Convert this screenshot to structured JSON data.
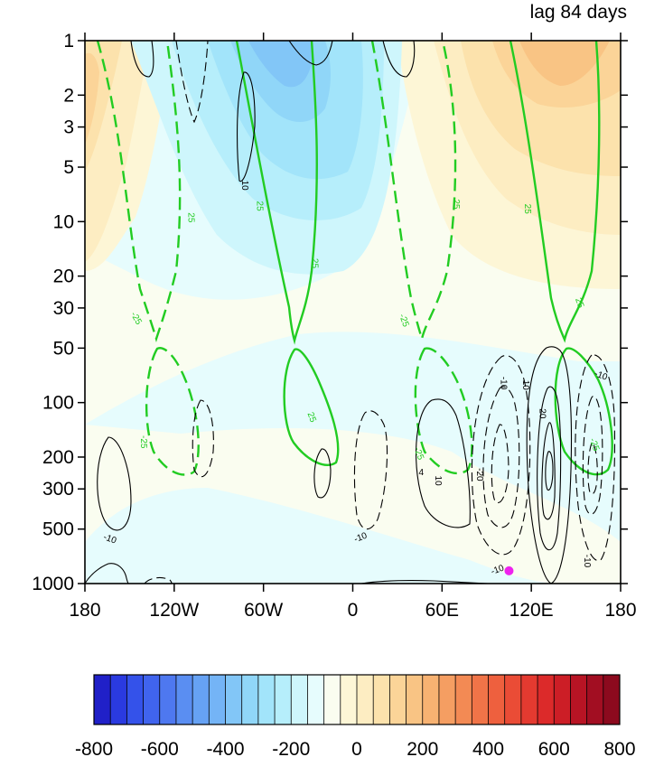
{
  "chart_data": {
    "type": "contour",
    "title": "",
    "subtitle": "lag 84 days",
    "xlabel": "",
    "ylabel": "",
    "x_ticks": [
      "180",
      "120W",
      "60W",
      "0",
      "60E",
      "120E",
      "180"
    ],
    "y_ticks": [
      1,
      2,
      3,
      5,
      10,
      20,
      30,
      50,
      100,
      200,
      300,
      500,
      1000
    ],
    "y_scale": "log",
    "y_reversed": true,
    "xlim": [
      -180,
      180
    ],
    "ylim": [
      1000,
      1
    ],
    "colorbar": {
      "labels": [
        "-800",
        "-600",
        "-400",
        "-200",
        "0",
        "200",
        "400",
        "600",
        "800"
      ],
      "min": -800,
      "max": 800,
      "interval": 50,
      "colors": [
        "#2020c8",
        "#2a3ae0",
        "#3452ea",
        "#4064ee",
        "#4e78f0",
        "#5a8ef2",
        "#66a2f4",
        "#74b4f6",
        "#82c6f7",
        "#90d6f8",
        "#a2e4fa",
        "#b6eefb",
        "#cef6fc",
        "#e6fcfd",
        "#fafdf0",
        "#fdf6d6",
        "#fdedc2",
        "#fce2ac",
        "#fbd498",
        "#f9c484",
        "#f7b272",
        "#f59e62",
        "#f38a54",
        "#f07448",
        "#ee603e",
        "#ea4c36",
        "#e43a30",
        "#dc2a2a",
        "#cc1e26",
        "#b81424",
        "#a20e22",
        "#8c0a1e"
      ]
    },
    "point_marker": {
      "lon": 105,
      "pressure": 850,
      "color": "#ee22ee"
    },
    "contour_labels": [
      {
        "text": "-10",
        "lon": -163,
        "p": 560,
        "rot": 20,
        "color": "#000"
      },
      {
        "text": "10",
        "lon": -72,
        "p": 6.3,
        "rot": 90,
        "color": "#000"
      },
      {
        "text": "-10",
        "lon": 5,
        "p": 550,
        "rot": -20,
        "color": "#000"
      },
      {
        "text": "10",
        "lon": 58,
        "p": 270,
        "rot": 90,
        "color": "#000"
      },
      {
        "text": "4",
        "lon": 46,
        "p": 240,
        "rot": 0,
        "color": "#000"
      },
      {
        "text": "-10",
        "lon": 97,
        "p": 830,
        "rot": -20,
        "color": "#000"
      },
      {
        "text": "-20",
        "lon": 86,
        "p": 250,
        "rot": 90,
        "color": "#000"
      },
      {
        "text": "-10",
        "lon": 102,
        "p": 78,
        "rot": 90,
        "color": "#000"
      },
      {
        "text": "10",
        "lon": 117,
        "p": 80,
        "rot": 90,
        "color": "#000"
      },
      {
        "text": "20",
        "lon": 128,
        "p": 115,
        "rot": 90,
        "color": "#000"
      },
      {
        "text": "-10",
        "lon": 167,
        "p": 70,
        "rot": 20,
        "color": "#000"
      },
      {
        "text": "-10",
        "lon": 158,
        "p": 750,
        "rot": 90,
        "color": "#000"
      },
      {
        "text": "25",
        "lon": -108,
        "p": 9.5,
        "rot": 90,
        "color": "#22cc22"
      },
      {
        "text": "25",
        "lon": -62,
        "p": 8.2,
        "rot": 90,
        "color": "#22cc22"
      },
      {
        "text": "25",
        "lon": -25,
        "p": 17,
        "rot": 90,
        "color": "#22cc22"
      },
      {
        "text": "-25",
        "lon": -145,
        "p": 34,
        "rot": 60,
        "color": "#22cc22"
      },
      {
        "text": "-25",
        "lon": -140,
        "p": 165,
        "rot": 90,
        "color": "#22cc22"
      },
      {
        "text": "25",
        "lon": -27,
        "p": 120,
        "rot": 70,
        "color": "#22cc22"
      },
      {
        "text": "-25",
        "lon": 35,
        "p": 35,
        "rot": 70,
        "color": "#22cc22"
      },
      {
        "text": "-25",
        "lon": 45,
        "p": 190,
        "rot": 70,
        "color": "#22cc22"
      },
      {
        "text": "25",
        "lon": 70,
        "p": 8,
        "rot": 90,
        "color": "#22cc22"
      },
      {
        "text": "25",
        "lon": 118,
        "p": 8.5,
        "rot": 90,
        "color": "#22cc22"
      },
      {
        "text": "25",
        "lon": 153,
        "p": 28,
        "rot": 70,
        "color": "#22cc22"
      },
      {
        "text": "-25",
        "lon": 163,
        "p": 170,
        "rot": 70,
        "color": "#22cc22"
      }
    ]
  }
}
